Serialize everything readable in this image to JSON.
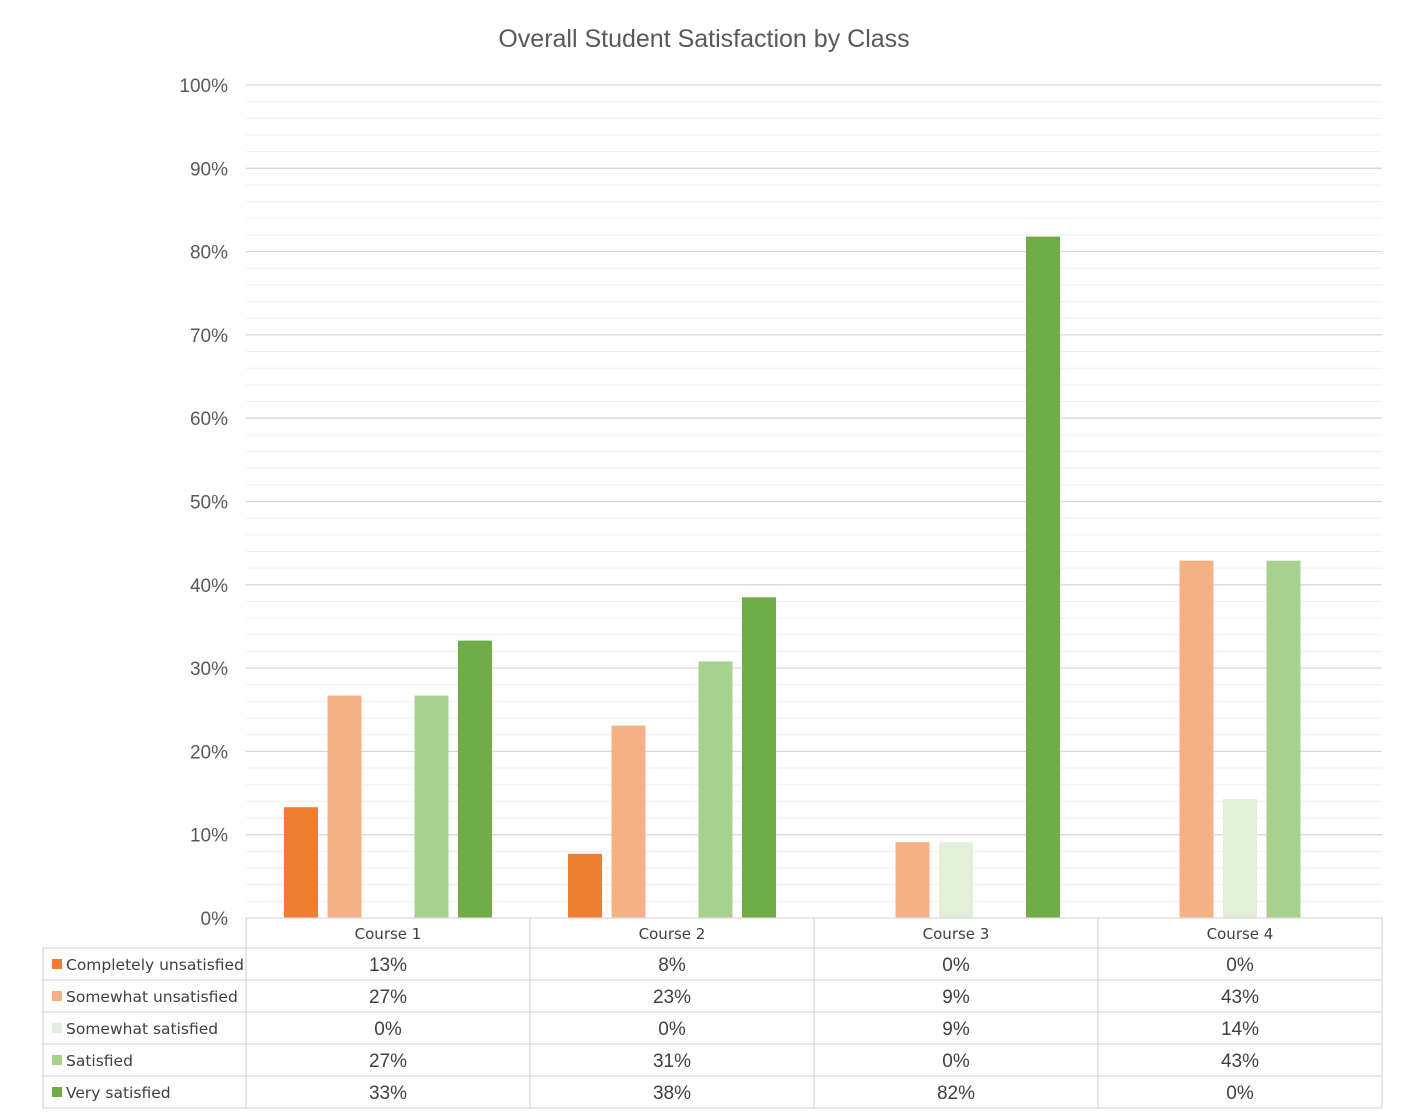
{
  "chart_data": {
    "type": "bar",
    "title": "Overall Student Satisfaction by Class",
    "categories": [
      "Course 1",
      "Course 2",
      "Course 3",
      "Course 4"
    ],
    "ylim": [
      0,
      100
    ],
    "yticks": [
      "0%",
      "10%",
      "20%",
      "30%",
      "40%",
      "50%",
      "60%",
      "70%",
      "80%",
      "90%",
      "100%"
    ],
    "grid": true,
    "legend": "data-table",
    "series": [
      {
        "name": "Completely unsatisfied",
        "color": "#ED7D31",
        "values": [
          13.3,
          7.7,
          0,
          0
        ],
        "labels": [
          "13%",
          "8%",
          "0%",
          "0%"
        ]
      },
      {
        "name": "Somewhat unsatisfied",
        "color": "#F4B183",
        "values": [
          26.7,
          23.1,
          9.1,
          42.9
        ],
        "labels": [
          "27%",
          "23%",
          "9%",
          "43%"
        ]
      },
      {
        "name": "Somewhat satisfied",
        "color": "#E2EFDA",
        "values": [
          0,
          0,
          9.1,
          14.3
        ],
        "labels": [
          "0%",
          "0%",
          "9%",
          "14%"
        ]
      },
      {
        "name": "Satisfied",
        "color": "#A9D18E",
        "values": [
          26.7,
          30.8,
          0,
          42.9
        ],
        "labels": [
          "27%",
          "31%",
          "0%",
          "43%"
        ]
      },
      {
        "name": "Very satisfied",
        "color": "#70AD47",
        "values": [
          33.3,
          38.5,
          81.8,
          0
        ],
        "labels": [
          "33%",
          "38%",
          "82%",
          "0%"
        ]
      }
    ]
  }
}
